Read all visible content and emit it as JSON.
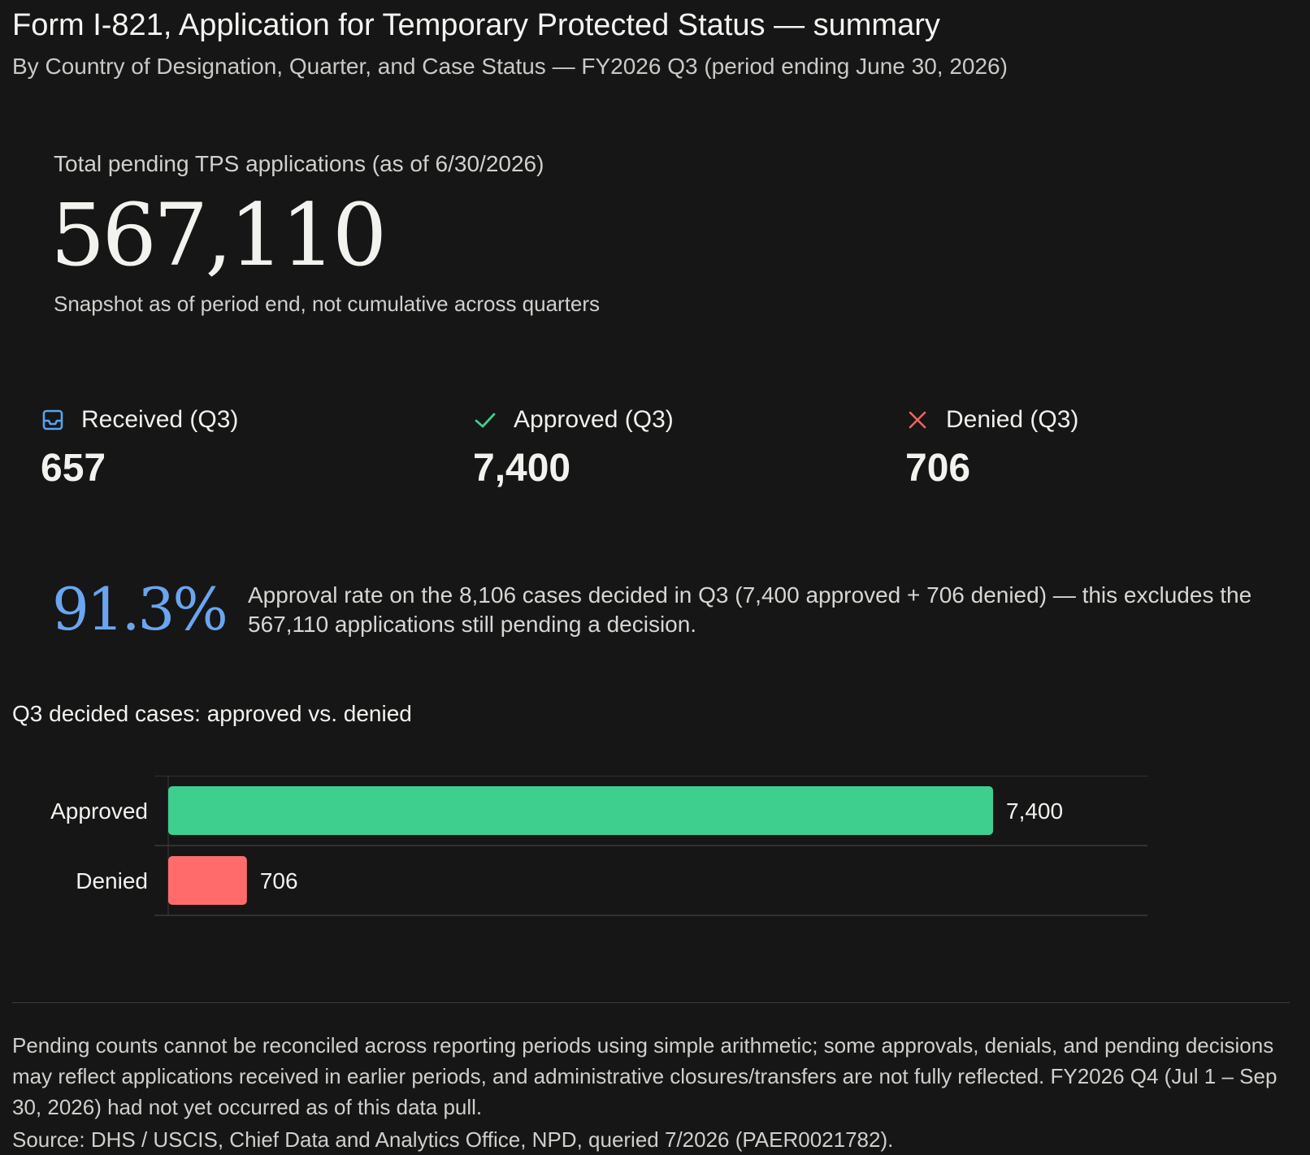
{
  "header": {
    "title": "Form I-821, Application for Temporary Protected Status — summary",
    "subtitle": "By Country of Designation, Quarter, and Case Status — FY2026 Q3 (period ending June 30, 2026)"
  },
  "pending": {
    "label": "Total pending TPS applications (as of 6/30/2026)",
    "value": "567,110",
    "note": "Snapshot as of period end, not cumulative across quarters"
  },
  "stats": {
    "received": {
      "label": "Received (Q3)",
      "value": "657",
      "icon": "inbox-icon",
      "color": "#5aa2f0"
    },
    "approved": {
      "label": "Approved (Q3)",
      "value": "7,400",
      "icon": "check-icon",
      "color": "#3ecf8e"
    },
    "denied": {
      "label": "Denied (Q3)",
      "value": "706",
      "icon": "x-icon",
      "color": "#f06262"
    }
  },
  "rate": {
    "value": "91.3%",
    "text": "Approval rate on the 8,106 cases decided in Q3 (7,400 approved + 706 denied) — this excludes the 567,110 applications still pending a decision."
  },
  "chart_data": {
    "type": "bar",
    "orientation": "horizontal",
    "title": "Q3 decided cases: approved vs. denied",
    "categories": [
      "Approved",
      "Denied"
    ],
    "values": [
      7400,
      706
    ],
    "value_labels": [
      "7,400",
      "706"
    ],
    "colors": [
      "#3ecf8e",
      "#ff6b6b"
    ],
    "grid": false
  },
  "footer": {
    "note": "Pending counts cannot be reconciled across reporting periods using simple arithmetic; some approvals, denials, and pending decisions may reflect applications received in earlier periods, and administrative closures/transfers are not fully reflected. FY2026 Q4 (Jul 1 – Sep 30, 2026) had not yet occurred as of this data pull.",
    "source": "Source: DHS / USCIS, Chief Data and Analytics Office, NPD, queried 7/2026 (PAER0021782)."
  }
}
